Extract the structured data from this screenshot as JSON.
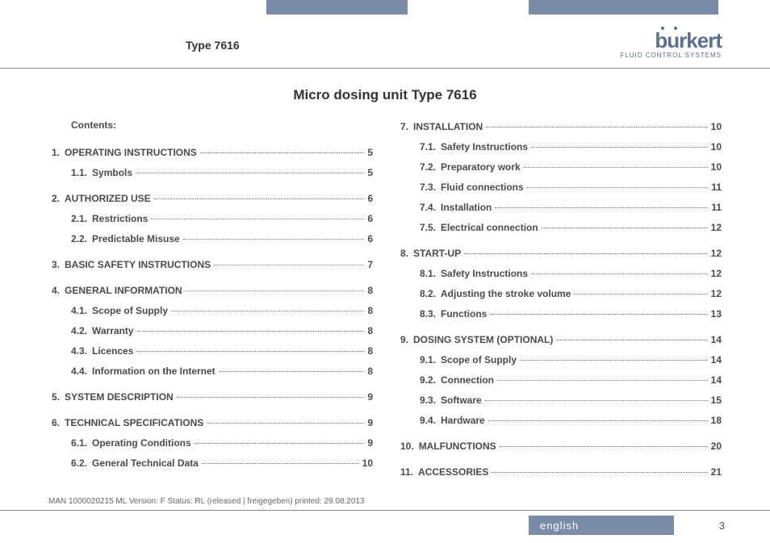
{
  "header": {
    "type_label": "Type 7616",
    "logo_main": "burkert",
    "logo_sub": "FLUID CONTROL SYSTEMS"
  },
  "title": "Micro dosing unit Type 7616",
  "contents_label": "Contents:",
  "left_toc": [
    {
      "kind": "top",
      "num": "1.",
      "label": "Operating Instructions",
      "page": "5"
    },
    {
      "kind": "sub",
      "num": "1.1.",
      "label": "Symbols",
      "page": "5"
    },
    {
      "kind": "top",
      "num": "2.",
      "label": "Authorized Use",
      "page": "6"
    },
    {
      "kind": "sub",
      "num": "2.1.",
      "label": "Restrictions",
      "page": "6"
    },
    {
      "kind": "sub",
      "num": "2.2.",
      "label": "Predictable Misuse",
      "page": "6"
    },
    {
      "kind": "top",
      "num": "3.",
      "label": "Basic Safety Instructions",
      "page": "7"
    },
    {
      "kind": "top",
      "num": "4.",
      "label": "General Information",
      "page": "8"
    },
    {
      "kind": "sub",
      "num": "4.1.",
      "label": "Scope of Supply",
      "page": "8"
    },
    {
      "kind": "sub",
      "num": "4.2.",
      "label": "Warranty",
      "page": "8"
    },
    {
      "kind": "sub",
      "num": "4.3.",
      "label": "Licences",
      "page": "8"
    },
    {
      "kind": "sub",
      "num": "4.4.",
      "label": "Information on the Internet",
      "page": "8"
    },
    {
      "kind": "top",
      "num": "5.",
      "label": "System Description",
      "page": "9"
    },
    {
      "kind": "top",
      "num": "6.",
      "label": "Technical Specifications",
      "page": "9"
    },
    {
      "kind": "sub",
      "num": "6.1.",
      "label": "Operating Conditions",
      "page": "9"
    },
    {
      "kind": "sub",
      "num": "6.2.",
      "label": "General Technical Data",
      "page": "10"
    }
  ],
  "right_toc": [
    {
      "kind": "top",
      "num": "7.",
      "label": "Installation",
      "page": "10"
    },
    {
      "kind": "sub",
      "num": "7.1.",
      "label": "Safety Instructions",
      "page": "10"
    },
    {
      "kind": "sub",
      "num": "7.2.",
      "label": "Preparatory work",
      "page": "10"
    },
    {
      "kind": "sub",
      "num": "7.3.",
      "label": "Fluid connections",
      "page": "11"
    },
    {
      "kind": "sub",
      "num": "7.4.",
      "label": "Installation",
      "page": "11"
    },
    {
      "kind": "sub",
      "num": "7.5.",
      "label": "Electrical connection",
      "page": "12"
    },
    {
      "kind": "top",
      "num": "8.",
      "label": "Start-up",
      "page": "12"
    },
    {
      "kind": "sub",
      "num": "8.1.",
      "label": "Safety Instructions",
      "page": "12"
    },
    {
      "kind": "sub",
      "num": "8.2.",
      "label": "Adjusting the stroke volume",
      "page": "12"
    },
    {
      "kind": "sub",
      "num": "8.3.",
      "label": "Functions",
      "page": "13"
    },
    {
      "kind": "top",
      "num": "9.",
      "label": "Dosing System (Optional)",
      "page": "14"
    },
    {
      "kind": "sub",
      "num": "9.1.",
      "label": "Scope of Supply",
      "page": "14"
    },
    {
      "kind": "sub",
      "num": "9.2.",
      "label": "Connection",
      "page": "14"
    },
    {
      "kind": "sub",
      "num": "9.3.",
      "label": "Software",
      "page": "15"
    },
    {
      "kind": "sub",
      "num": "9.4.",
      "label": "Hardware",
      "page": "18"
    },
    {
      "kind": "top",
      "num": "10.",
      "label": "Malfunctions",
      "page": "20"
    },
    {
      "kind": "top",
      "num": "11.",
      "label": "Accessories",
      "page": "21"
    }
  ],
  "meta": "MAN 1000020215 ML Version: F Status: RL (released | freigegeben) printed: 29.08.2013",
  "footer_lang": "english",
  "page_num": "3",
  "colors": {
    "accent": "#7a8ba8",
    "logo": "#5a7090",
    "text": "#333333",
    "muted": "#666666"
  }
}
